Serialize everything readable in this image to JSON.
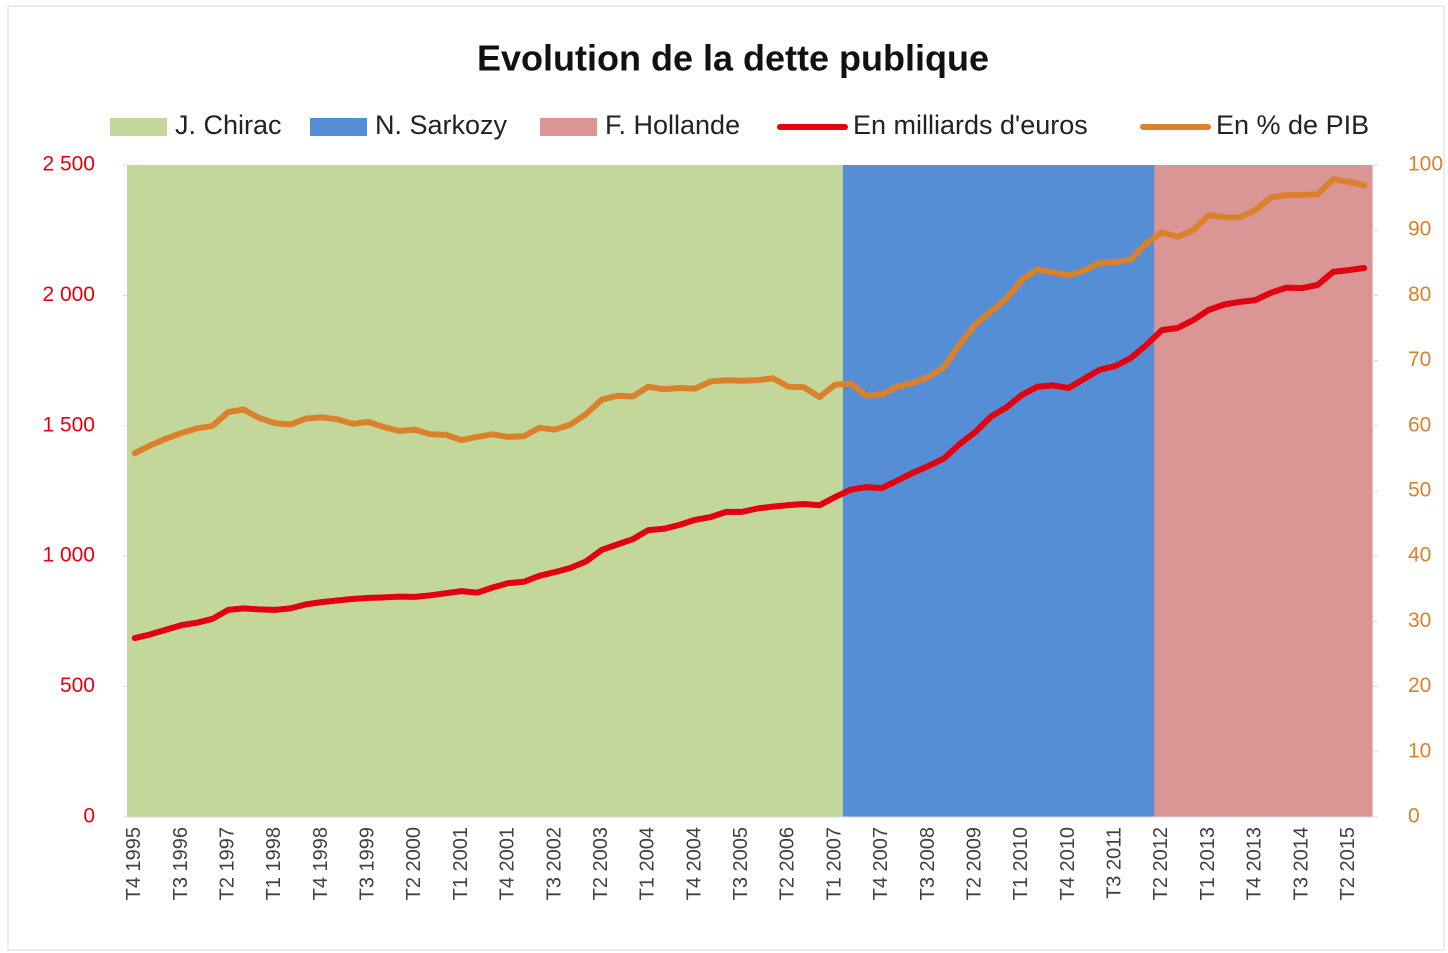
{
  "chart_data": {
    "type": "combo",
    "title": "Evolution  de la dette publique",
    "categories": [
      "T4 1995",
      null,
      null,
      "T3 1996",
      null,
      null,
      "T2 1997",
      null,
      null,
      "T1 1998",
      null,
      null,
      "T4 1998",
      null,
      null,
      "T3 1999",
      null,
      null,
      "T2 2000",
      null,
      null,
      "T1 2001",
      null,
      null,
      "T4 2001",
      null,
      null,
      "T3 2002",
      null,
      null,
      "T2 2003",
      null,
      null,
      "T1 2004",
      null,
      null,
      "T4 2004",
      null,
      null,
      "T3 2005",
      null,
      null,
      "T2 2006",
      null,
      null,
      "T1 2007",
      null,
      null,
      "T4 2007",
      null,
      null,
      "T3 2008",
      null,
      null,
      "T2 2009",
      null,
      null,
      "T1 2010",
      null,
      null,
      "T4 2010",
      null,
      null,
      "T3 2011",
      null,
      null,
      "T2 2012",
      null,
      null,
      "T1 2013",
      null,
      null,
      "T4 2013",
      null,
      null,
      "T3 2014",
      null,
      null,
      "T2 2015",
      null
    ],
    "ylim": [
      0,
      2500
    ],
    "yticks": [
      0,
      500,
      {
        "value": 1000,
        "label": "1 000"
      },
      {
        "value": 1500,
        "label": "1 500"
      },
      {
        "value": 2000,
        "label": "2 000"
      },
      {
        "value": 2500,
        "label": "2 500"
      }
    ],
    "y2lim": [
      0,
      100
    ],
    "y2ticks": [
      0,
      10,
      20,
      30,
      40,
      50,
      60,
      70,
      80,
      90,
      100
    ],
    "legend": "top",
    "series": [
      {
        "name": "J. Chirac",
        "chart": "bar",
        "color": "#c4d79b",
        "values": [
          2500,
          2500,
          2500,
          2500,
          2500,
          2500,
          2500,
          2500,
          2500,
          2500,
          2500,
          2500,
          2500,
          2500,
          2500,
          2500,
          2500,
          2500,
          2500,
          2500,
          2500,
          2500,
          2500,
          2500,
          2500,
          2500,
          2500,
          2500,
          2500,
          2500,
          2500,
          2500,
          2500,
          2500,
          2500,
          2500,
          2500,
          2500,
          2500,
          2500,
          2500,
          2500,
          2500,
          2500,
          2500,
          2500,
          null,
          null,
          null,
          null,
          null,
          null,
          null,
          null,
          null,
          null,
          null,
          null,
          null,
          null,
          null,
          null,
          null,
          null,
          null,
          null,
          null,
          null,
          null,
          null,
          null,
          null,
          null,
          null,
          null,
          null,
          null,
          null,
          null,
          null
        ]
      },
      {
        "name": "N. Sarkozy",
        "chart": "bar",
        "color": "#558ed5",
        "values": [
          null,
          null,
          null,
          null,
          null,
          null,
          null,
          null,
          null,
          null,
          null,
          null,
          null,
          null,
          null,
          null,
          null,
          null,
          null,
          null,
          null,
          null,
          null,
          null,
          null,
          null,
          null,
          null,
          null,
          null,
          null,
          null,
          null,
          null,
          null,
          null,
          null,
          null,
          null,
          null,
          null,
          null,
          null,
          null,
          null,
          null,
          2500,
          2500,
          2500,
          2500,
          2500,
          2500,
          2500,
          2500,
          2500,
          2500,
          2500,
          2500,
          2500,
          2500,
          2500,
          2500,
          2500,
          2500,
          2500,
          2500,
          null,
          null,
          null,
          null,
          null,
          null,
          null,
          null,
          null,
          null,
          null,
          null,
          null,
          null
        ]
      },
      {
        "name": "F. Hollande",
        "chart": "bar",
        "color": "#d99694",
        "values": [
          null,
          null,
          null,
          null,
          null,
          null,
          null,
          null,
          null,
          null,
          null,
          null,
          null,
          null,
          null,
          null,
          null,
          null,
          null,
          null,
          null,
          null,
          null,
          null,
          null,
          null,
          null,
          null,
          null,
          null,
          null,
          null,
          null,
          null,
          null,
          null,
          null,
          null,
          null,
          null,
          null,
          null,
          null,
          null,
          null,
          null,
          null,
          null,
          null,
          null,
          null,
          null,
          null,
          null,
          null,
          null,
          null,
          null,
          null,
          null,
          null,
          null,
          null,
          null,
          null,
          null,
          2500,
          2500,
          2500,
          2500,
          2500,
          2500,
          2500,
          2500,
          2500,
          2500,
          2500,
          2500,
          2500,
          2500
        ]
      },
      {
        "name": "En milliards d'euros",
        "chart": "line",
        "color": "#e3000f",
        "values": [
          686,
          700,
          718,
          736,
          745,
          760,
          794,
          800,
          796,
          794,
          800,
          815,
          824,
          830,
          836,
          840,
          842,
          845,
          844,
          850,
          858,
          866,
          860,
          880,
          897,
          902,
          925,
          939,
          955,
          980,
          1024,
          1045,
          1065,
          1100,
          1105,
          1120,
          1139,
          1150,
          1170,
          1170,
          1183,
          1190,
          1196,
          1200,
          1195,
          1227,
          1255,
          1265,
          1261,
          1290,
          1320,
          1346,
          1375,
          1430,
          1476,
          1535,
          1570,
          1618,
          1650,
          1655,
          1645,
          1680,
          1715,
          1729,
          1760,
          1810,
          1867,
          1875,
          1905,
          1944,
          1965,
          1975,
          1982,
          2010,
          2030,
          2028,
          2040,
          2090,
          2097,
          2105
        ]
      },
      {
        "name": "En % de PIB",
        "chart": "line",
        "axis": "y2",
        "color": "#d9822b",
        "values": [
          55.8,
          57.0,
          58.0,
          58.9,
          59.6,
          60.0,
          62.1,
          62.5,
          61.2,
          60.4,
          60.2,
          61.1,
          61.3,
          61.0,
          60.3,
          60.6,
          59.8,
          59.2,
          59.4,
          58.7,
          58.6,
          57.8,
          58.3,
          58.7,
          58.3,
          58.4,
          59.7,
          59.4,
          60.2,
          61.8,
          64.0,
          64.6,
          64.5,
          66.0,
          65.6,
          65.8,
          65.7,
          66.8,
          67.0,
          66.9,
          67.0,
          67.3,
          66.0,
          65.9,
          64.4,
          66.3,
          66.5,
          64.6,
          64.8,
          66.0,
          66.6,
          67.5,
          69.0,
          72.5,
          75.5,
          77.5,
          79.5,
          82.4,
          84.0,
          83.5,
          83.1,
          83.8,
          85.0,
          85.1,
          85.5,
          88.0,
          89.7,
          89.0,
          90.0,
          92.3,
          92.0,
          92.0,
          93.1,
          95.0,
          95.4,
          95.4,
          95.5,
          97.8,
          97.4,
          96.9
        ]
      }
    ]
  }
}
